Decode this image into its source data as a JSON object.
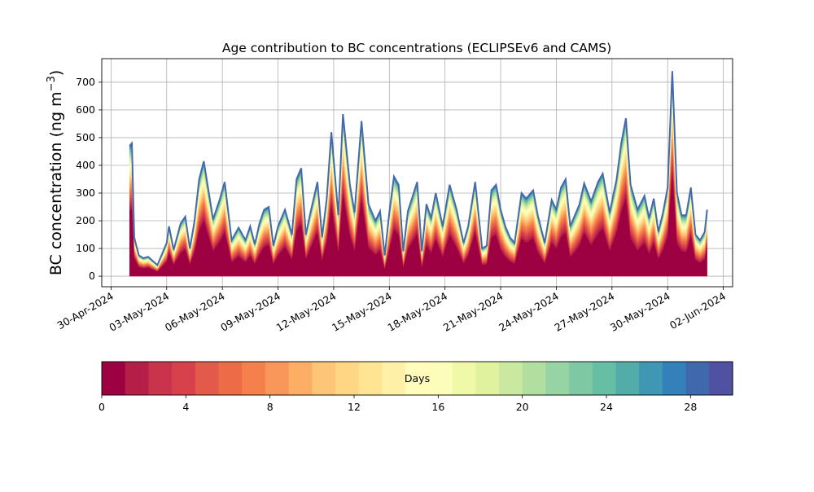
{
  "chart_data": {
    "type": "area",
    "title": "Age contribution to BC concentrations (ECLIPSEv6 and CAMS)",
    "xlabel": "",
    "ylabel": "BC concentration (ng m−3)",
    "ylabel_base": "BC concentration (ng m",
    "ylabel_sup": "−3",
    "ylabel_close": ")",
    "ylim": [
      -38,
      785
    ],
    "yticks": [
      0,
      100,
      200,
      300,
      400,
      500,
      600,
      700
    ],
    "xlim": [
      "2024-04-29T12:00",
      "2024-06-02T12:00"
    ],
    "xticks": [
      "2024-04-30",
      "2024-05-03",
      "2024-05-06",
      "2024-05-09",
      "2024-05-12",
      "2024-05-15",
      "2024-05-18",
      "2024-05-21",
      "2024-05-24",
      "2024-05-27",
      "2024-05-30",
      "2024-06-02"
    ],
    "xtick_labels": [
      "30-Apr-2024",
      "03-May-2024",
      "06-May-2024",
      "09-May-2024",
      "12-May-2024",
      "15-May-2024",
      "18-May-2024",
      "21-May-2024",
      "24-May-2024",
      "27-May-2024",
      "30-May-2024",
      "02-Jun-2024"
    ],
    "grid": true,
    "x": [
      "2024-05-01T00:00",
      "2024-05-01T03:00",
      "2024-05-01T06:00",
      "2024-05-01T12:00",
      "2024-05-01T18:00",
      "2024-05-02T00:00",
      "2024-05-02T12:00",
      "2024-05-03T00:00",
      "2024-05-03T03:00",
      "2024-05-03T09:00",
      "2024-05-03T18:00",
      "2024-05-04T00:00",
      "2024-05-04T06:00",
      "2024-05-04T12:00",
      "2024-05-04T18:00",
      "2024-05-05T00:00",
      "2024-05-05T12:00",
      "2024-05-05T21:00",
      "2024-05-06T03:00",
      "2024-05-06T12:00",
      "2024-05-06T21:00",
      "2024-05-07T06:00",
      "2024-05-07T12:00",
      "2024-05-07T18:00",
      "2024-05-08T00:00",
      "2024-05-08T06:00",
      "2024-05-08T12:00",
      "2024-05-08T18:00",
      "2024-05-09T00:00",
      "2024-05-09T09:00",
      "2024-05-09T18:00",
      "2024-05-10T00:00",
      "2024-05-10T06:00",
      "2024-05-10T12:00",
      "2024-05-10T18:00",
      "2024-05-11T03:00",
      "2024-05-11T09:00",
      "2024-05-11T15:00",
      "2024-05-11T21:00",
      "2024-05-12T06:00",
      "2024-05-12T12:00",
      "2024-05-12T21:00",
      "2024-05-13T03:00",
      "2024-05-13T12:00",
      "2024-05-13T21:00",
      "2024-05-14T06:00",
      "2024-05-14T12:00",
      "2024-05-14T18:00",
      "2024-05-15T00:00",
      "2024-05-15T06:00",
      "2024-05-15T12:00",
      "2024-05-15T18:00",
      "2024-05-16T00:00",
      "2024-05-16T12:00",
      "2024-05-16T18:00",
      "2024-05-17T00:00",
      "2024-05-17T06:00",
      "2024-05-17T12:00",
      "2024-05-17T21:00",
      "2024-05-18T06:00",
      "2024-05-18T15:00",
      "2024-05-19T00:00",
      "2024-05-19T06:00",
      "2024-05-19T15:00",
      "2024-05-20T00:00",
      "2024-05-20T06:00",
      "2024-05-20T12:00",
      "2024-05-20T18:00",
      "2024-05-21T00:00",
      "2024-05-21T06:00",
      "2024-05-21T12:00",
      "2024-05-21T18:00",
      "2024-05-22T03:00",
      "2024-05-22T09:00",
      "2024-05-22T18:00",
      "2024-05-23T00:00",
      "2024-05-23T09:00",
      "2024-05-23T18:00",
      "2024-05-24T00:00",
      "2024-05-24T06:00",
      "2024-05-24T12:00",
      "2024-05-24T18:00",
      "2024-05-25T00:00",
      "2024-05-25T06:00",
      "2024-05-25T12:00",
      "2024-05-25T21:00",
      "2024-05-26T06:00",
      "2024-05-26T12:00",
      "2024-05-26T21:00",
      "2024-05-27T06:00",
      "2024-05-27T12:00",
      "2024-05-27T18:00",
      "2024-05-28T00:00",
      "2024-05-28T09:00",
      "2024-05-28T18:00",
      "2024-05-29T00:00",
      "2024-05-29T06:00",
      "2024-05-29T12:00",
      "2024-05-29T18:00",
      "2024-05-30T00:00",
      "2024-05-30T06:00",
      "2024-05-30T12:00",
      "2024-05-30T18:00",
      "2024-05-31T00:00",
      "2024-05-31T06:00",
      "2024-05-31T12:00",
      "2024-05-31T18:00",
      "2024-06-01T00:00",
      "2024-06-01T03:00"
    ],
    "total": [
      470,
      480,
      140,
      75,
      65,
      70,
      40,
      120,
      180,
      95,
      190,
      215,
      100,
      200,
      350,
      415,
      205,
      280,
      340,
      130,
      175,
      130,
      180,
      115,
      190,
      240,
      250,
      110,
      180,
      240,
      150,
      350,
      390,
      150,
      230,
      340,
      140,
      280,
      520,
      220,
      585,
      330,
      230,
      560,
      260,
      200,
      235,
      75,
      230,
      360,
      330,
      90,
      235,
      340,
      90,
      260,
      210,
      300,
      180,
      330,
      240,
      120,
      180,
      340,
      100,
      110,
      310,
      330,
      240,
      180,
      140,
      120,
      300,
      280,
      310,
      220,
      120,
      275,
      240,
      320,
      350,
      180,
      220,
      260,
      335,
      270,
      340,
      370,
      230,
      350,
      480,
      570,
      330,
      240,
      290,
      210,
      280,
      160,
      230,
      320,
      740,
      300,
      220,
      220,
      320,
      150,
      130,
      160,
      240
    ],
    "young_frac": [
      0.92,
      0.92,
      0.85,
      0.8,
      0.8,
      0.82,
      0.75,
      0.8,
      0.85,
      0.78,
      0.8,
      0.82,
      0.75,
      0.8,
      0.85,
      0.88,
      0.8,
      0.82,
      0.85,
      0.7,
      0.75,
      0.7,
      0.75,
      0.7,
      0.75,
      0.8,
      0.82,
      0.72,
      0.75,
      0.8,
      0.72,
      0.85,
      0.88,
      0.75,
      0.8,
      0.85,
      0.72,
      0.8,
      0.9,
      0.7,
      0.92,
      0.8,
      0.72,
      0.9,
      0.72,
      0.7,
      0.72,
      0.6,
      0.75,
      0.85,
      0.82,
      0.6,
      0.75,
      0.82,
      0.6,
      0.78,
      0.72,
      0.8,
      0.7,
      0.82,
      0.78,
      0.7,
      0.75,
      0.85,
      0.72,
      0.72,
      0.82,
      0.82,
      0.72,
      0.7,
      0.7,
      0.68,
      0.82,
      0.78,
      0.8,
      0.72,
      0.7,
      0.8,
      0.75,
      0.8,
      0.82,
      0.7,
      0.72,
      0.78,
      0.85,
      0.75,
      0.82,
      0.85,
      0.72,
      0.82,
      0.88,
      0.9,
      0.75,
      0.7,
      0.75,
      0.7,
      0.78,
      0.7,
      0.75,
      0.82,
      0.92,
      0.72,
      0.75,
      0.72,
      0.82,
      0.7,
      0.68,
      0.7,
      0.82
    ],
    "legend": {
      "label": "Days",
      "range": [
        0,
        30
      ],
      "ticks": [
        0,
        4,
        8,
        12,
        16,
        20,
        24,
        28
      ],
      "colors": [
        "#9e0142",
        "#b41e47",
        "#c9334b",
        "#d8414b",
        "#e45a4a",
        "#ed6c47",
        "#f6804b",
        "#f9965a",
        "#fdad64",
        "#fdc576",
        "#fed684",
        "#fee493",
        "#fff1a8",
        "#fffcbc",
        "#fbfdb9",
        "#f0f9a8",
        "#e0f29e",
        "#cbe99e",
        "#b1df9f",
        "#97d4a3",
        "#7ec9a4",
        "#66bea4",
        "#54aca9",
        "#3f97b4",
        "#3380ba",
        "#4069ad",
        "#5051a0"
      ]
    }
  }
}
